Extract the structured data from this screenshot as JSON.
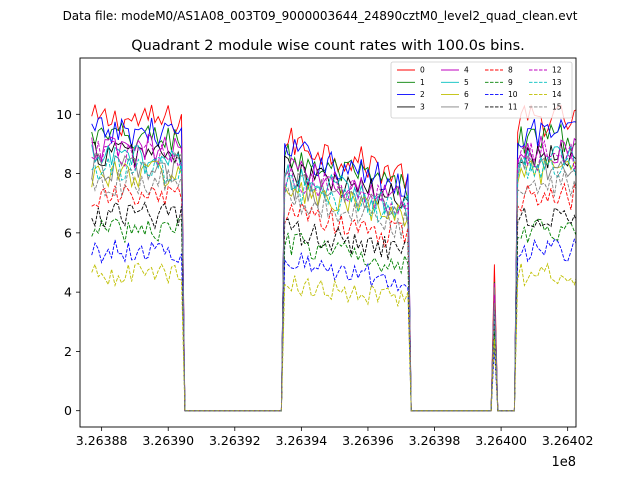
{
  "chart_data": {
    "type": "line",
    "suptitle": "Data file: modeM0/AS1A08_003T09_9000003644_24890cztM0_level2_quad_clean.evt",
    "title": "Quadrant 2 module wise count rates with 100.0s bins.",
    "xlabel": "",
    "ylabel": "",
    "x_offset_label": "1e8",
    "x_unit_scale": 100000000,
    "xlim": [
      326387350,
      326402250
    ],
    "ylim": [
      -0.55,
      11.9
    ],
    "x_ticks": [
      326388000,
      326390000,
      326392000,
      326394000,
      326396000,
      326398000,
      326400000,
      326402000
    ],
    "x_tick_labels": [
      "3.26388",
      "3.26390",
      "3.26392",
      "3.26394",
      "3.26396",
      "3.26398",
      "3.26400",
      "3.26402"
    ],
    "y_ticks": [
      0,
      2,
      4,
      6,
      8,
      10
    ],
    "y_tick_labels": [
      "0",
      "2",
      "4",
      "6",
      "8",
      "10"
    ],
    "legend_loc": "upper right",
    "x_start": 326387700,
    "bin_width": 100,
    "segments": [
      {
        "start": 0,
        "end": 27,
        "level": 1.0
      },
      {
        "start": 28,
        "end": 57,
        "level": 0.0
      },
      {
        "start": 58,
        "end": 95,
        "level": 0.93
      },
      {
        "start": 96,
        "end": 120,
        "level": 0.0
      },
      {
        "start": 121,
        "end": 121,
        "level": 0.45
      },
      {
        "start": 122,
        "end": 127,
        "level": 0.0
      },
      {
        "start": 128,
        "end": 146,
        "level": 1.0
      }
    ],
    "series": [
      {
        "name": "0",
        "color": "#ff0000",
        "dash": "solid",
        "base": 9.8
      },
      {
        "name": "1",
        "color": "#008000",
        "dash": "solid",
        "base": 9.2
      },
      {
        "name": "2",
        "color": "#0000ff",
        "dash": "solid",
        "base": 9.4
      },
      {
        "name": "3",
        "color": "#000000",
        "dash": "solid",
        "base": 8.7
      },
      {
        "name": "4",
        "color": "#bf00bf",
        "dash": "solid",
        "base": 8.8
      },
      {
        "name": "5",
        "color": "#00bfbf",
        "dash": "solid",
        "base": 8.5
      },
      {
        "name": "6",
        "color": "#bfbf00",
        "dash": "solid",
        "base": 8.0
      },
      {
        "name": "7",
        "color": "#808080",
        "dash": "solid",
        "base": 8.2
      },
      {
        "name": "8",
        "color": "#ff0000",
        "dash": "dashed",
        "base": 7.2
      },
      {
        "name": "9",
        "color": "#008000",
        "dash": "dashed",
        "base": 6.1
      },
      {
        "name": "10",
        "color": "#0000ff",
        "dash": "dashed",
        "base": 5.4
      },
      {
        "name": "11",
        "color": "#000000",
        "dash": "dashed",
        "base": 6.6
      },
      {
        "name": "12",
        "color": "#bf00bf",
        "dash": "dashed",
        "base": 8.6
      },
      {
        "name": "13",
        "color": "#00bfbf",
        "dash": "dashed",
        "base": 8.1
      },
      {
        "name": "14",
        "color": "#bfbf00",
        "dash": "dashed",
        "base": 4.6
      },
      {
        "name": "15",
        "color": "#808080",
        "dash": "dashed",
        "base": 7.7
      }
    ]
  }
}
